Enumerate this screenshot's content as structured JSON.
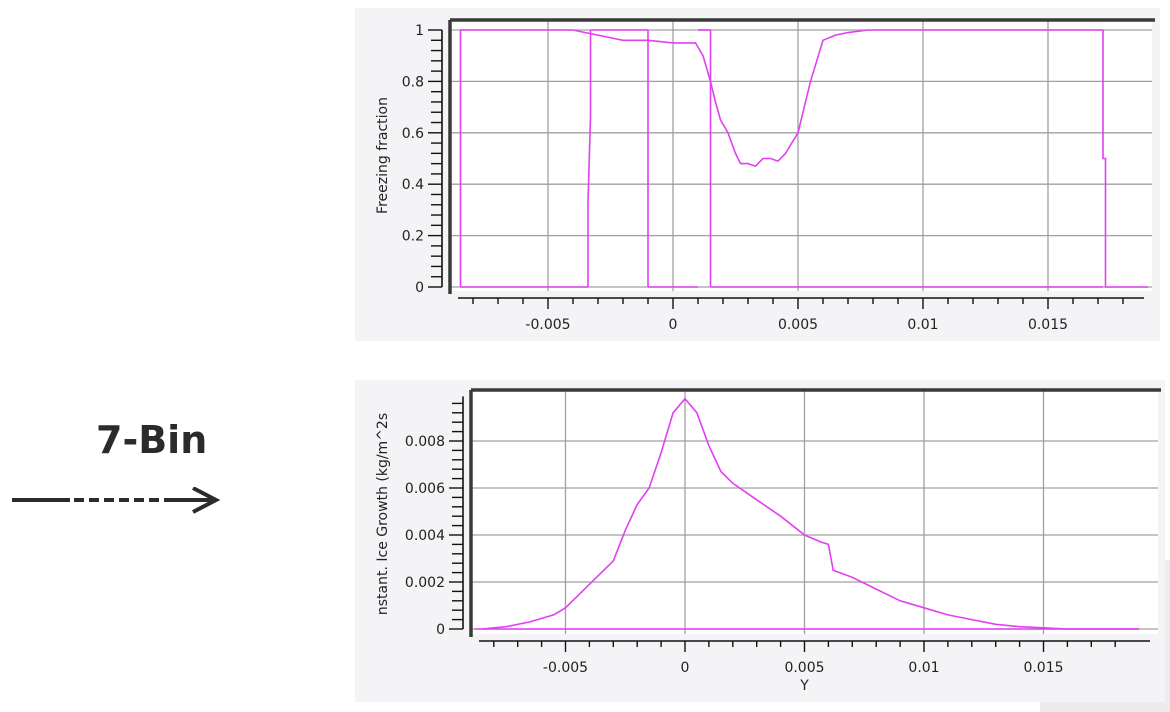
{
  "annotation": {
    "label": "7-Bin",
    "arrow_icon": "dashed-right-arrow"
  },
  "colors": {
    "series": "#e040f0",
    "grid": "#a0a0a0",
    "axis": "#3a3a3a",
    "panel_bg": "#f4f4f6",
    "plot_bg": "#ffffff"
  },
  "chart_data": [
    {
      "type": "line",
      "title": "",
      "xlabel": "",
      "ylabel": "Freezing fraction",
      "xlim": [
        -0.0085,
        0.019
      ],
      "ylim": [
        0,
        1
      ],
      "x_ticks": [
        "-0.005",
        "0",
        "0.005",
        "0.01",
        "0.015"
      ],
      "x_tick_values": [
        -0.005,
        0,
        0.005,
        0.01,
        0.015
      ],
      "y_ticks": [
        "0",
        "0.2",
        "0.4",
        "0.6",
        "0.8",
        "1"
      ],
      "y_tick_values": [
        0,
        0.2,
        0.4,
        0.6,
        0.8,
        1
      ],
      "grid": true,
      "legend": null,
      "series": [
        {
          "name": "Freezing fraction",
          "x": [
            -0.0085,
            -0.0085,
            -0.004,
            -0.0035,
            -0.003,
            -0.002,
            -0.001,
            0.0,
            0.0009,
            0.0012,
            0.0015,
            0.0017,
            0.0019,
            0.0022,
            0.0025,
            0.0027,
            0.003,
            0.0033,
            0.0036,
            0.0039,
            0.0042,
            0.0045,
            0.005,
            0.0055,
            0.006,
            0.0065,
            0.007,
            0.0078,
            0.012,
            0.0172,
            0.0172,
            0.0173,
            0.0173,
            0.019
          ],
          "y": [
            0.0,
            1.0,
            1.0,
            0.99,
            0.98,
            0.96,
            0.96,
            0.95,
            0.95,
            0.9,
            0.8,
            0.72,
            0.65,
            0.6,
            0.52,
            0.48,
            0.48,
            0.47,
            0.5,
            0.5,
            0.49,
            0.52,
            0.6,
            0.8,
            0.96,
            0.98,
            0.99,
            1.0,
            1.0,
            1.0,
            0.5,
            0.5,
            0.0,
            0.0
          ]
        },
        {
          "name": "Bin boundary segments",
          "segments": [
            {
              "x": [
                -0.0085,
                -0.0034
              ],
              "y": [
                0,
                0
              ]
            },
            {
              "x": [
                -0.0034,
                -0.0034,
                -0.0033,
                -0.0033
              ],
              "y": [
                0,
                0.33,
                0.66,
                1.0
              ]
            },
            {
              "x": [
                -0.0033,
                -0.001
              ],
              "y": [
                1,
                1
              ]
            },
            {
              "x": [
                -0.001,
                -0.001
              ],
              "y": [
                0,
                1
              ]
            },
            {
              "x": [
                -0.001,
                0.001
              ],
              "y": [
                0,
                0
              ]
            },
            {
              "x": [
                0.001,
                0.0015
              ],
              "y": [
                1,
                1
              ]
            },
            {
              "x": [
                0.0015,
                0.0015
              ],
              "y": [
                0,
                1
              ]
            },
            {
              "x": [
                0.0015,
                0.0172
              ],
              "y": [
                0,
                0
              ]
            }
          ]
        }
      ]
    },
    {
      "type": "line",
      "title": "",
      "xlabel": "Y",
      "ylabel": "nstant. Ice Growth (kg/m^2s",
      "xlim": [
        -0.0088,
        0.019
      ],
      "ylim": [
        0,
        0.0099
      ],
      "x_ticks": [
        "-0.005",
        "0",
        "0.005",
        "0.01",
        "0.015"
      ],
      "x_tick_values": [
        -0.005,
        0,
        0.005,
        0.01,
        0.015
      ],
      "y_ticks": [
        "0",
        "0.002",
        "0.004",
        "0.006",
        "0.008"
      ],
      "y_tick_values": [
        0,
        0.002,
        0.004,
        0.006,
        0.008
      ],
      "grid": true,
      "legend": null,
      "series": [
        {
          "name": "Instant. Ice Growth",
          "x": [
            -0.0085,
            -0.0075,
            -0.0065,
            -0.0055,
            -0.005,
            -0.004,
            -0.003,
            -0.0025,
            -0.002,
            -0.0015,
            -0.001,
            -0.0005,
            0.0,
            0.0005,
            0.001,
            0.0015,
            0.002,
            0.003,
            0.004,
            0.005,
            0.0057,
            0.006,
            0.0062,
            0.007,
            0.008,
            0.009,
            0.01,
            0.011,
            0.012,
            0.013,
            0.014,
            0.015,
            0.016,
            0.019
          ],
          "y": [
            0.0,
            0.0001,
            0.0003,
            0.0006,
            0.0009,
            0.0019,
            0.0029,
            0.0042,
            0.0053,
            0.006,
            0.0075,
            0.0092,
            0.0098,
            0.0092,
            0.0078,
            0.0067,
            0.0062,
            0.0055,
            0.0048,
            0.004,
            0.0037,
            0.0036,
            0.0025,
            0.0022,
            0.0017,
            0.0012,
            0.0009,
            0.0006,
            0.0004,
            0.0002,
            0.0001,
            5e-05,
            0.0,
            0.0
          ]
        },
        {
          "name": "Baseline",
          "x": [
            -0.0088,
            0.019
          ],
          "y": [
            0,
            0
          ]
        }
      ]
    }
  ]
}
